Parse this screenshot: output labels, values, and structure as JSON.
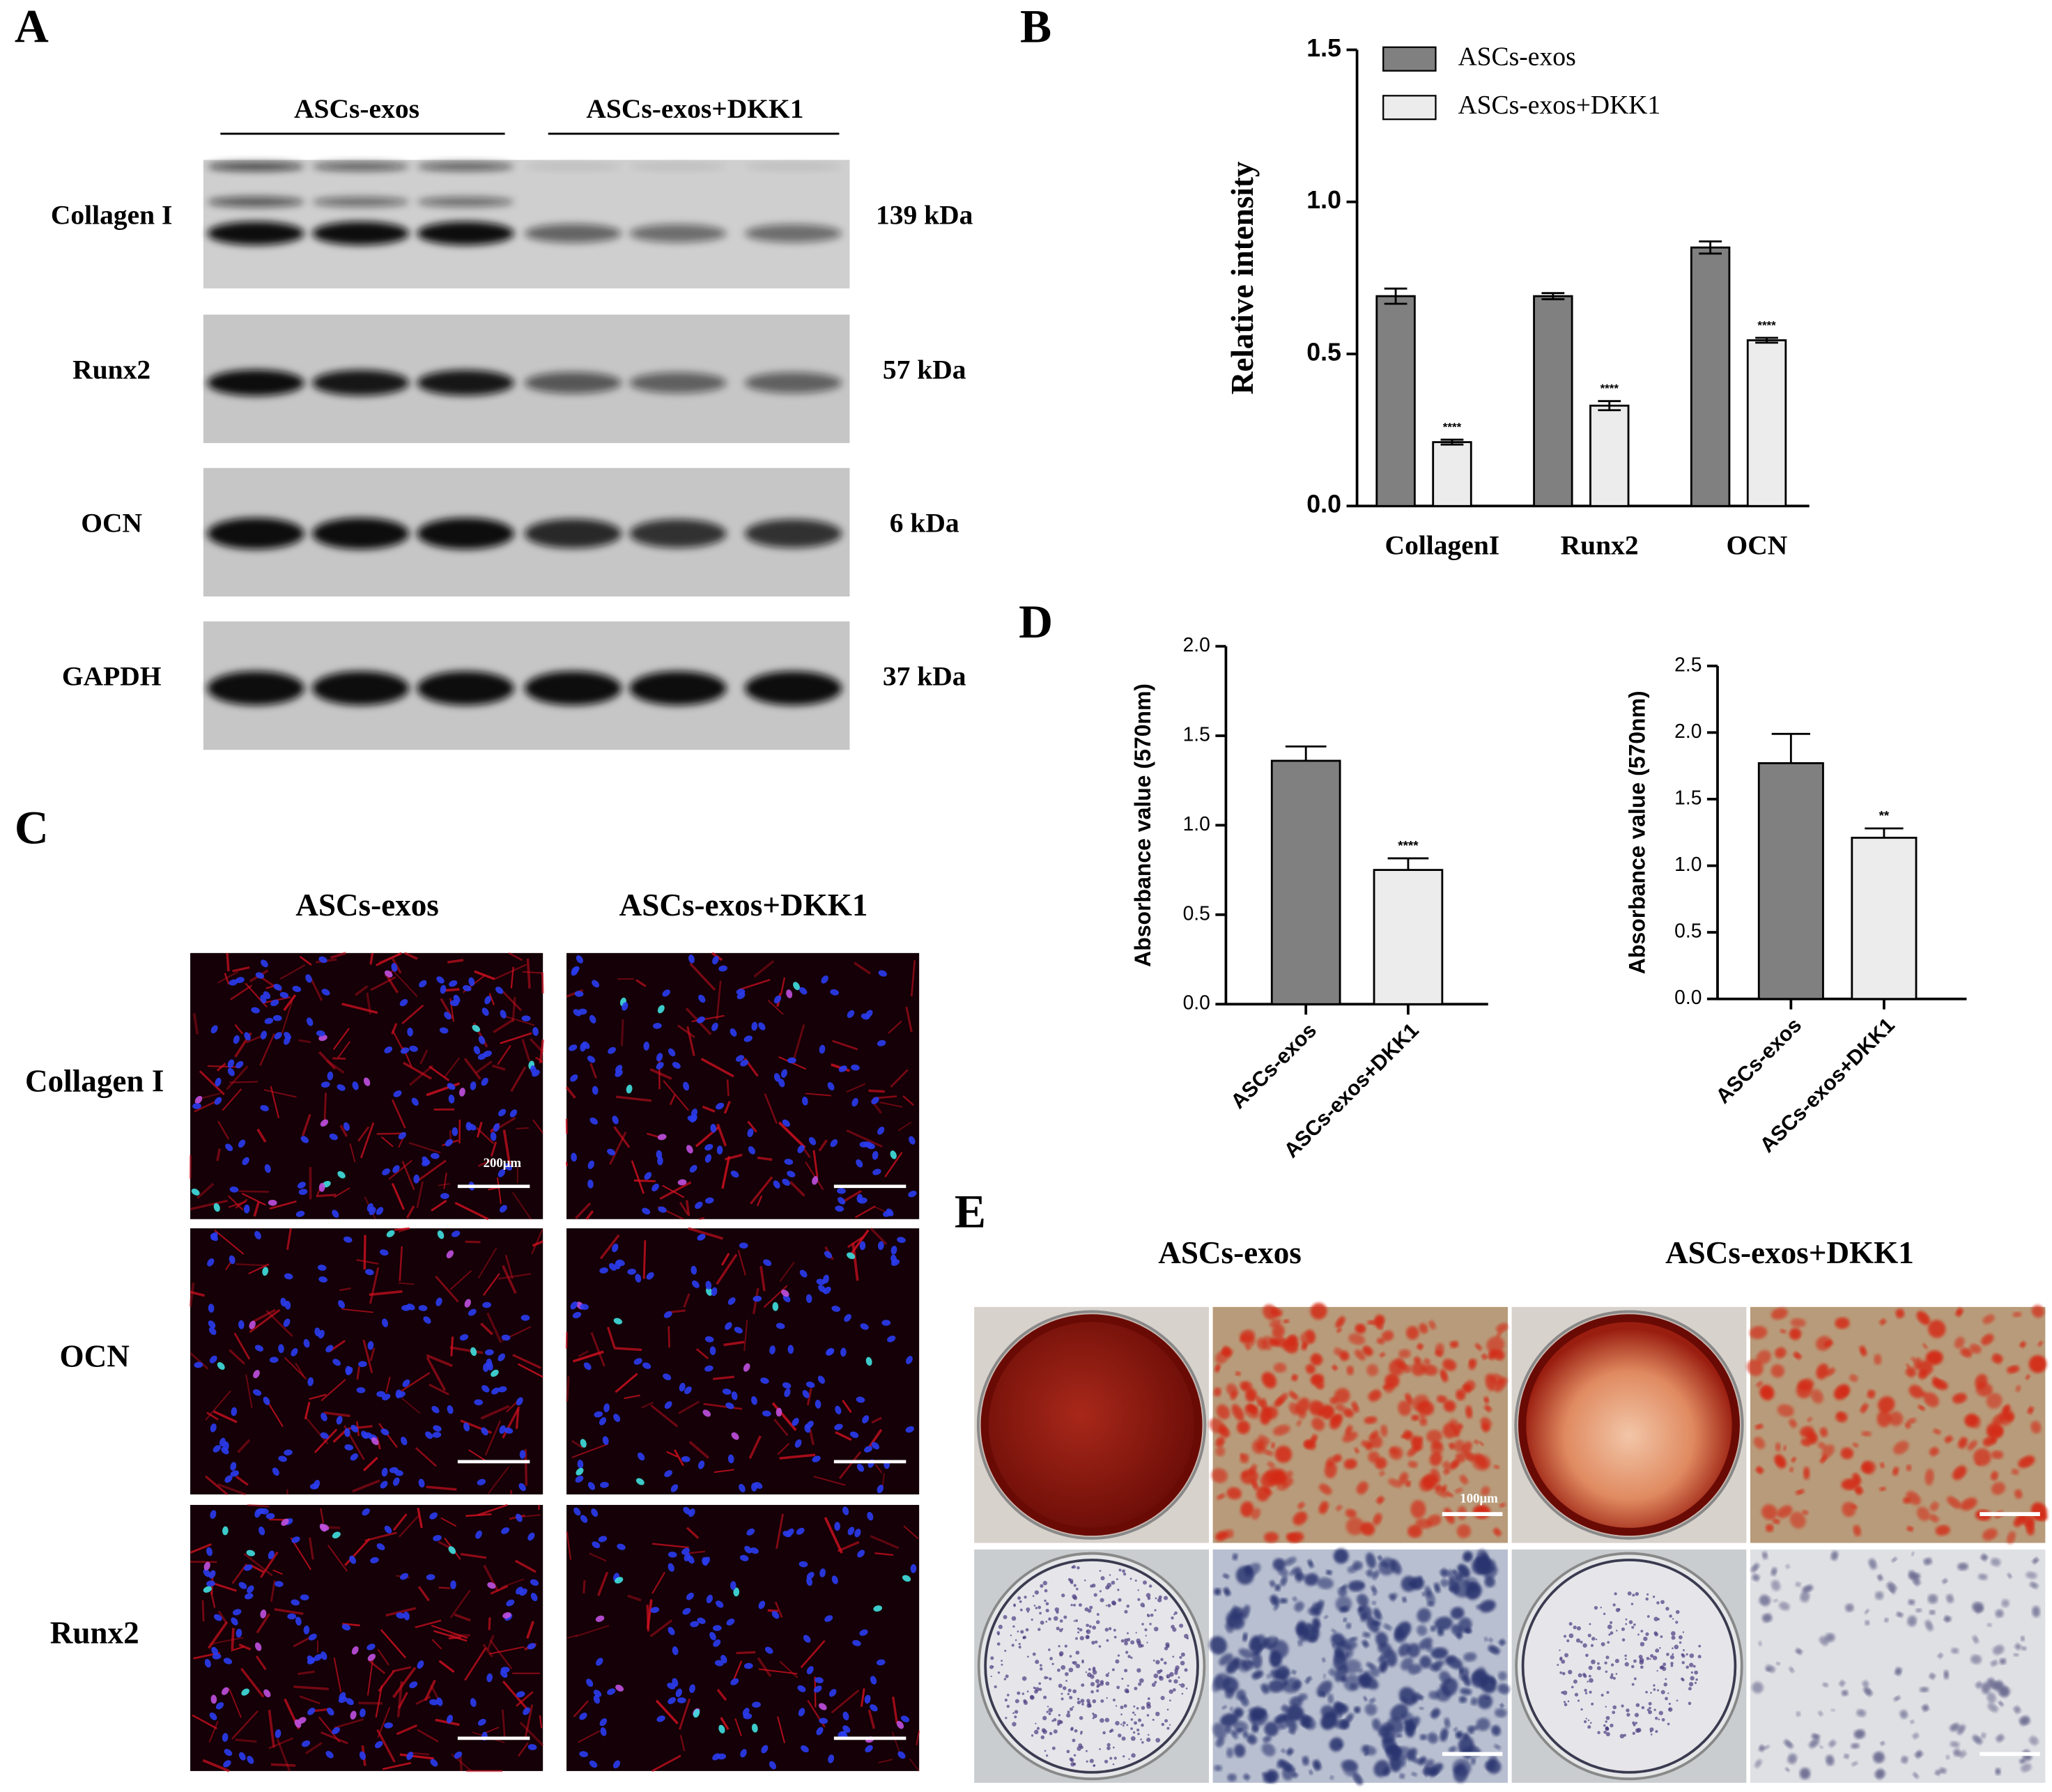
{
  "panel_labels": [
    "A",
    "B",
    "C",
    "D",
    "E"
  ],
  "blot": {
    "groups": [
      "ASCs-exos",
      "ASCs-exos+DKK1"
    ],
    "rows": [
      {
        "label": "Collagen I",
        "size": "139 kDa"
      },
      {
        "label": "Runx2",
        "size": "57 kDa"
      },
      {
        "label": "OCN",
        "size": "6 kDa"
      },
      {
        "label": "GAPDH",
        "size": "37 kDa"
      }
    ]
  },
  "chart_data": [
    {
      "type": "bar",
      "y_label": "Relative intensity",
      "categories": [
        "CollagenI",
        "Runx2",
        "OCN"
      ],
      "series": [
        {
          "name": "ASCs-exos",
          "color": "#808080",
          "values": [
            0.69,
            0.69,
            0.85
          ],
          "errors": [
            0.025,
            0.01,
            0.02
          ]
        },
        {
          "name": "ASCs-exos+DKK1",
          "color": "#ececec",
          "values": [
            0.21,
            0.33,
            0.545
          ],
          "errors": [
            0.008,
            0.015,
            0.008
          ],
          "annotations": [
            "****",
            "****",
            "****"
          ]
        }
      ],
      "ylim": [
        0,
        1.5
      ],
      "yticks": [
        {
          "value": 0,
          "label": "0.0"
        },
        {
          "value": 0.5,
          "label": "0.5"
        },
        {
          "value": 1,
          "label": "1.0"
        },
        {
          "value": 1.5,
          "label": "1.5"
        }
      ]
    },
    {
      "type": "bar",
      "y_label": "Absorbance value (570nm)",
      "categories": [
        "ASCs-exos",
        "ASCs-exos+DKK1"
      ],
      "values": [
        1.36,
        0.75
      ],
      "errors": [
        0.08,
        0.065
      ],
      "colors": [
        "#808080",
        "#ececec"
      ],
      "annotations": [
        null,
        "****"
      ],
      "ylim": [
        0,
        2
      ],
      "yticks": [
        {
          "value": 0,
          "label": "0.0"
        },
        {
          "value": 0.5,
          "label": "0.5"
        },
        {
          "value": 1,
          "label": "1.0"
        },
        {
          "value": 1.5,
          "label": "1.5"
        },
        {
          "value": 2,
          "label": "2.0"
        }
      ]
    },
    {
      "type": "bar",
      "y_label": "Absorbance value (570nm)",
      "categories": [
        "ASCs-exos",
        "ASCs-exos+DKK1"
      ],
      "values": [
        1.77,
        1.21
      ],
      "errors": [
        0.22,
        0.07
      ],
      "colors": [
        "#808080",
        "#ececec"
      ],
      "annotations": [
        null,
        "**"
      ],
      "ylim": [
        0,
        2.5
      ],
      "yticks": [
        {
          "value": 0,
          "label": "0.0"
        },
        {
          "value": 0.5,
          "label": "0.5"
        },
        {
          "value": 1,
          "label": "1.0"
        },
        {
          "value": 1.5,
          "label": "1.5"
        },
        {
          "value": 2,
          "label": "2.0"
        },
        {
          "value": 2.5,
          "label": "2.5"
        }
      ]
    }
  ],
  "fluorescence": {
    "columns": [
      "ASCs-exos",
      "ASCs-exos+DKK1"
    ],
    "rows": [
      "Collagen I",
      "OCN",
      "Runx2"
    ],
    "scale_bar": "200μm"
  },
  "staining": {
    "columns": [
      "ASCs-exos",
      "ASCs-exos+DKK1"
    ],
    "scale_bar": "100μm"
  }
}
